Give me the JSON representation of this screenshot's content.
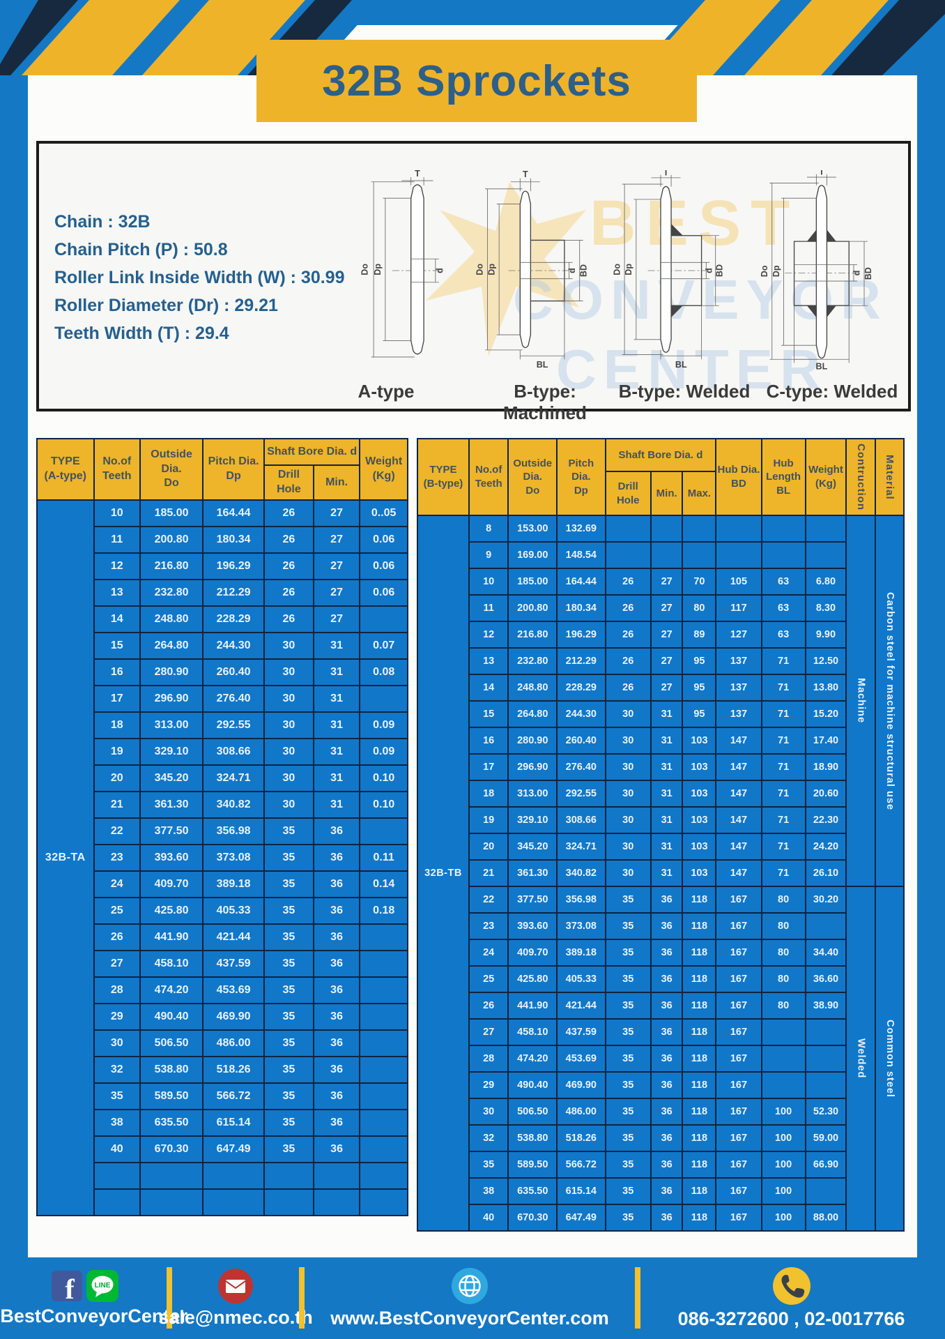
{
  "header": {
    "title": "32B Sprockets"
  },
  "specs": {
    "lines": [
      "Chain  : 32B",
      "Chain Pitch (P)  :  50.8",
      "Roller Link Inside Width (W)  :  30.99",
      "Roller Diameter (Dr)  : 29.21",
      "Teeth Width (T)  :  29.4"
    ]
  },
  "diagrams": {
    "captions": [
      "A-type",
      "B-type: Machined",
      "B-type: Welded",
      "C-type: Welded"
    ],
    "dims": {
      "t": "T",
      "outside": "Do",
      "pitch": "Dp",
      "bore": "d",
      "hub_dia": "BD",
      "hub_len": "BL"
    },
    "watermark": [
      "BEST",
      "CONVEYOR",
      "CENTER"
    ]
  },
  "tableA": {
    "type_label": "32B-TA",
    "col_names": [
      "teeth",
      "outside-dia",
      "pitch-dia",
      "drill-hole",
      "min",
      "weight"
    ],
    "header_rows": [
      [
        {
          "name": "type",
          "lines": [
            "TYPE",
            "(A-type)"
          ],
          "rs": 2
        },
        {
          "name": "teeth",
          "lines": [
            "No.of",
            "Teeth"
          ],
          "rs": 2
        },
        {
          "name": "outside-dia",
          "lines": [
            "Outside",
            "Dia.",
            "Do"
          ],
          "rs": 2
        },
        {
          "name": "pitch-dia",
          "lines": [
            "Pitch Dia.",
            "Dp"
          ],
          "rs": 2
        },
        {
          "name": "shaft-bore",
          "lines": [
            "Shaft Bore Dia. d"
          ],
          "cs": 2
        },
        {
          "name": "weight",
          "lines": [
            "Weight",
            "(Kg)"
          ],
          "rs": 2
        }
      ],
      [
        {
          "name": "drill-hole",
          "lines": [
            "Drill Hole"
          ]
        },
        {
          "name": "min",
          "lines": [
            "Min."
          ]
        }
      ]
    ],
    "rows": [
      [
        "10",
        "185.00",
        "164.44",
        "26",
        "27",
        "0..05"
      ],
      [
        "11",
        "200.80",
        "180.34",
        "26",
        "27",
        "0.06"
      ],
      [
        "12",
        "216.80",
        "196.29",
        "26",
        "27",
        "0.06"
      ],
      [
        "13",
        "232.80",
        "212.29",
        "26",
        "27",
        "0.06"
      ],
      [
        "14",
        "248.80",
        "228.29",
        "26",
        "27",
        ""
      ],
      [
        "15",
        "264.80",
        "244.30",
        "30",
        "31",
        "0.07"
      ],
      [
        "16",
        "280.90",
        "260.40",
        "30",
        "31",
        "0.08"
      ],
      [
        "17",
        "296.90",
        "276.40",
        "30",
        "31",
        ""
      ],
      [
        "18",
        "313.00",
        "292.55",
        "30",
        "31",
        "0.09"
      ],
      [
        "19",
        "329.10",
        "308.66",
        "30",
        "31",
        "0.09"
      ],
      [
        "20",
        "345.20",
        "324.71",
        "30",
        "31",
        "0.10"
      ],
      [
        "21",
        "361.30",
        "340.82",
        "30",
        "31",
        "0.10"
      ],
      [
        "22",
        "377.50",
        "356.98",
        "35",
        "36",
        ""
      ],
      [
        "23",
        "393.60",
        "373.08",
        "35",
        "36",
        "0.11"
      ],
      [
        "24",
        "409.70",
        "389.18",
        "35",
        "36",
        "0.14"
      ],
      [
        "25",
        "425.80",
        "405.33",
        "35",
        "36",
        "0.18"
      ],
      [
        "26",
        "441.90",
        "421.44",
        "35",
        "36",
        ""
      ],
      [
        "27",
        "458.10",
        "437.59",
        "35",
        "36",
        ""
      ],
      [
        "28",
        "474.20",
        "453.69",
        "35",
        "36",
        ""
      ],
      [
        "29",
        "490.40",
        "469.90",
        "35",
        "36",
        ""
      ],
      [
        "30",
        "506.50",
        "486.00",
        "35",
        "36",
        ""
      ],
      [
        "32",
        "538.80",
        "518.26",
        "35",
        "36",
        ""
      ],
      [
        "35",
        "589.50",
        "566.72",
        "35",
        "36",
        ""
      ],
      [
        "38",
        "635.50",
        "615.14",
        "35",
        "36",
        ""
      ],
      [
        "40",
        "670.30",
        "647.49",
        "35",
        "36",
        ""
      ],
      [
        "",
        "",
        "",
        "",
        "",
        ""
      ],
      [
        "",
        "",
        "",
        "",
        "",
        ""
      ]
    ]
  },
  "tableB": {
    "type_label": "32B-TB",
    "col_names": [
      "teeth",
      "outside-dia",
      "pitch-dia",
      "drill-hole",
      "min",
      "max",
      "hub-dia",
      "hub-length",
      "weight"
    ],
    "header_rows": [
      [
        {
          "name": "type",
          "lines": [
            "TYPE",
            "(B-type)"
          ],
          "rs": 2
        },
        {
          "name": "teeth",
          "lines": [
            "No.of",
            "Teeth"
          ],
          "rs": 2
        },
        {
          "name": "outside-dia",
          "lines": [
            "Outside",
            "Dia.",
            "Do"
          ],
          "rs": 2
        },
        {
          "name": "pitch-dia",
          "lines": [
            "Pitch Dia.",
            "Dp"
          ],
          "rs": 2
        },
        {
          "name": "shaft-bore",
          "lines": [
            "Shaft Bore Dia. d"
          ],
          "cs": 3
        },
        {
          "name": "hub-dia",
          "lines": [
            "Hub Dia.",
            "BD"
          ],
          "rs": 2
        },
        {
          "name": "hub-length",
          "lines": [
            "Hub",
            "Length",
            "BL"
          ],
          "rs": 2
        },
        {
          "name": "weight",
          "lines": [
            "Weight",
            "(Kg)"
          ],
          "rs": 2
        },
        {
          "name": "construction",
          "lines": [
            "Contruction"
          ],
          "rs": 2,
          "vert": true
        },
        {
          "name": "material",
          "lines": [
            "Material"
          ],
          "rs": 2,
          "vert": true
        }
      ],
      [
        {
          "name": "drill-hole",
          "lines": [
            "Drill Hole"
          ]
        },
        {
          "name": "min",
          "lines": [
            "Min."
          ]
        },
        {
          "name": "max",
          "lines": [
            "Max."
          ]
        }
      ]
    ],
    "rows": [
      [
        "8",
        "153.00",
        "132.69",
        "",
        "",
        "",
        "",
        "",
        ""
      ],
      [
        "9",
        "169.00",
        "148.54",
        "",
        "",
        "",
        "",
        "",
        ""
      ],
      [
        "10",
        "185.00",
        "164.44",
        "26",
        "27",
        "70",
        "105",
        "63",
        "6.80"
      ],
      [
        "11",
        "200.80",
        "180.34",
        "26",
        "27",
        "80",
        "117",
        "63",
        "8.30"
      ],
      [
        "12",
        "216.80",
        "196.29",
        "26",
        "27",
        "89",
        "127",
        "63",
        "9.90"
      ],
      [
        "13",
        "232.80",
        "212.29",
        "26",
        "27",
        "95",
        "137",
        "71",
        "12.50"
      ],
      [
        "14",
        "248.80",
        "228.29",
        "26",
        "27",
        "95",
        "137",
        "71",
        "13.80"
      ],
      [
        "15",
        "264.80",
        "244.30",
        "30",
        "31",
        "95",
        "137",
        "71",
        "15.20"
      ],
      [
        "16",
        "280.90",
        "260.40",
        "30",
        "31",
        "103",
        "147",
        "71",
        "17.40"
      ],
      [
        "17",
        "296.90",
        "276.40",
        "30",
        "31",
        "103",
        "147",
        "71",
        "18.90"
      ],
      [
        "18",
        "313.00",
        "292.55",
        "30",
        "31",
        "103",
        "147",
        "71",
        "20.60"
      ],
      [
        "19",
        "329.10",
        "308.66",
        "30",
        "31",
        "103",
        "147",
        "71",
        "22.30"
      ],
      [
        "20",
        "345.20",
        "324.71",
        "30",
        "31",
        "103",
        "147",
        "71",
        "24.20"
      ],
      [
        "21",
        "361.30",
        "340.82",
        "30",
        "31",
        "103",
        "147",
        "71",
        "26.10"
      ],
      [
        "22",
        "377.50",
        "356.98",
        "35",
        "36",
        "118",
        "167",
        "80",
        "30.20"
      ],
      [
        "23",
        "393.60",
        "373.08",
        "35",
        "36",
        "118",
        "167",
        "80",
        ""
      ],
      [
        "24",
        "409.70",
        "389.18",
        "35",
        "36",
        "118",
        "167",
        "80",
        "34.40"
      ],
      [
        "25",
        "425.80",
        "405.33",
        "35",
        "36",
        "118",
        "167",
        "80",
        "36.60"
      ],
      [
        "26",
        "441.90",
        "421.44",
        "35",
        "36",
        "118",
        "167",
        "80",
        "38.90"
      ],
      [
        "27",
        "458.10",
        "437.59",
        "35",
        "36",
        "118",
        "167",
        "",
        ""
      ],
      [
        "28",
        "474.20",
        "453.69",
        "35",
        "36",
        "118",
        "167",
        "",
        ""
      ],
      [
        "29",
        "490.40",
        "469.90",
        "35",
        "36",
        "118",
        "167",
        "",
        ""
      ],
      [
        "30",
        "506.50",
        "486.00",
        "35",
        "36",
        "118",
        "167",
        "100",
        "52.30"
      ],
      [
        "32",
        "538.80",
        "518.26",
        "35",
        "36",
        "118",
        "167",
        "100",
        "59.00"
      ],
      [
        "35",
        "589.50",
        "566.72",
        "35",
        "36",
        "118",
        "167",
        "100",
        "66.90"
      ],
      [
        "38",
        "635.50",
        "615.14",
        "35",
        "36",
        "118",
        "167",
        "100",
        ""
      ],
      [
        "40",
        "670.30",
        "647.49",
        "35",
        "36",
        "118",
        "167",
        "100",
        "88.00"
      ]
    ],
    "span_groups": [
      {
        "column": "construction",
        "groups": [
          {
            "label": "Machine",
            "rows": 14
          },
          {
            "label": "Welded",
            "rows": 13
          }
        ]
      },
      {
        "column": "material",
        "groups": [
          {
            "label": "Carbon steel for machine structural use",
            "rows": 14
          },
          {
            "label": "Common steel",
            "rows": 13
          }
        ]
      }
    ]
  },
  "footer": {
    "social": "@BestConveyorCenter",
    "line_badge": "LINE",
    "email": "sale@nmec.co.th",
    "website": "www.BestConveyorCenter.com",
    "phone": "086-3272600 , 02-0017766"
  },
  "colors": {
    "frame_blue": "#1478c4",
    "cell_blue": "#1177c9",
    "accent_yellow": "#efb32a",
    "border_navy": "#0f2440",
    "title_navy": "#2d5f88",
    "stripe_dark": "#16293e"
  }
}
